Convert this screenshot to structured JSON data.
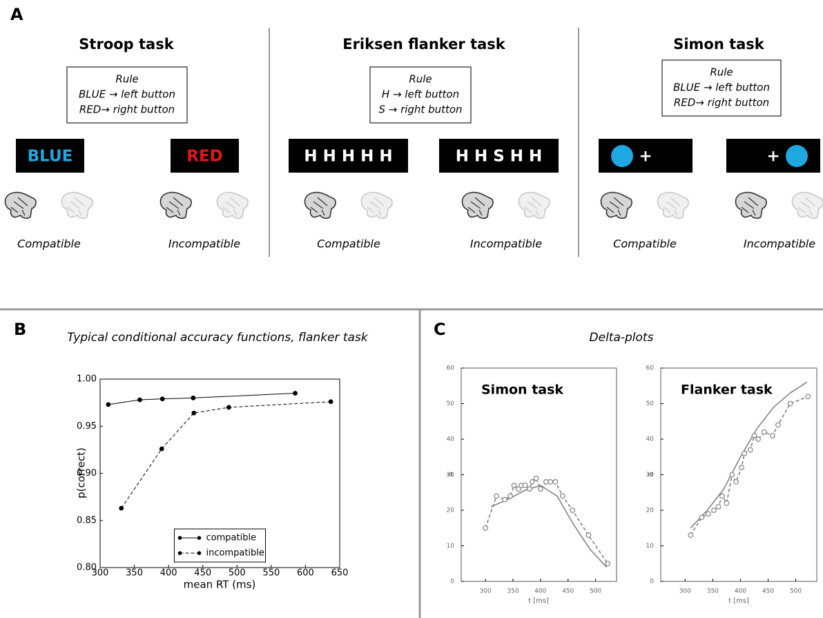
{
  "panels": {
    "a": "A",
    "b": "B",
    "c": "C"
  },
  "panel_a": {
    "tasks": [
      {
        "title": "Stroop task",
        "rule": [
          "Rule",
          "BLUE → left button",
          "RED→ right button"
        ],
        "stimuli": [
          {
            "text": "BLUE",
            "color": "#1ea7e1"
          },
          {
            "text": "RED",
            "color": "#e8141b"
          }
        ],
        "conditions": [
          "Compatible",
          "Incompatible"
        ]
      },
      {
        "title": "Eriksen flanker task",
        "rule": [
          "Rule",
          "H → left button",
          "S → right button"
        ],
        "stimuli": [
          {
            "text": "H H H H H",
            "color": "#ffffff"
          },
          {
            "text": "H H S H H",
            "color": "#ffffff"
          }
        ],
        "conditions": [
          "Compatible",
          "Incompatible"
        ]
      },
      {
        "title": "Simon task",
        "rule": [
          "Rule",
          "BLUE → left button",
          "RED→ right button"
        ],
        "stimuli": [
          {
            "text": "+",
            "color": "#ffffff",
            "circle": "left"
          },
          {
            "text": "+",
            "color": "#ffffff",
            "circle": "right"
          }
        ],
        "conditions": [
          "Compatible",
          "Incompatible"
        ]
      }
    ]
  },
  "panel_c_title": "Delta-plots",
  "chart_data": [
    {
      "type": "line",
      "title": "Typical conditional accuracy functions, flanker task",
      "xlabel": "mean RT (ms)",
      "ylabel": "p(correct)",
      "xlim": [
        300,
        650
      ],
      "ylim": [
        0.8,
        1.0
      ],
      "xticks": [
        300,
        350,
        400,
        450,
        500,
        550,
        600,
        650
      ],
      "yticks": [
        {
          "value": 0.8,
          "label": "0.80"
        },
        0.85,
        {
          "value": 0.9,
          "label": "0.90"
        },
        0.95,
        {
          "value": 1.0,
          "label": "1.00"
        }
      ],
      "legend": "lower center",
      "series": [
        {
          "name": "compatible",
          "color": "#000000",
          "dashed": false,
          "marker": "dot",
          "x": [
            312,
            358,
            391,
            436,
            585
          ],
          "values": [
            0.973,
            0.978,
            0.979,
            0.98,
            0.985
          ]
        },
        {
          "name": "incompatible",
          "color": "#000000",
          "dashed": true,
          "marker": "dot",
          "x": [
            331,
            390,
            437,
            488,
            637
          ],
          "values": [
            0.863,
            0.926,
            0.964,
            0.97,
            0.976
          ]
        }
      ]
    },
    {
      "type": "line",
      "annotation": "Simon task",
      "xlabel": "t [ms]",
      "ylabel": "Δ",
      "xlim": [
        256,
        538
      ],
      "ylim": [
        0,
        60
      ],
      "xticks": [
        300,
        350,
        400,
        450,
        500
      ],
      "yticks": [
        0,
        10,
        20,
        30,
        40,
        50,
        60
      ],
      "series": [
        {
          "color": "#808080",
          "dashed": false,
          "marker": "none",
          "x": [
            310,
            340,
            370,
            400,
            430,
            460,
            490,
            520
          ],
          "values": [
            21,
            23,
            25.5,
            27,
            24,
            16,
            9,
            4
          ]
        },
        {
          "color": "#808080",
          "dashed": true,
          "marker": "circle",
          "x": [
            300,
            320,
            335,
            345,
            352,
            360,
            365,
            372,
            380,
            385,
            392,
            400,
            410,
            418,
            427,
            440,
            458,
            487,
            522
          ],
          "values": [
            15,
            24,
            23,
            24,
            27,
            26,
            27,
            27,
            26,
            28,
            29,
            26,
            28,
            28,
            28,
            24,
            20,
            13,
            5
          ]
        }
      ]
    },
    {
      "type": "line",
      "annotation": "Flanker task",
      "xlabel": "t [ms]",
      "ylabel": "Δ",
      "xlim": [
        256,
        538
      ],
      "ylim": [
        0,
        60
      ],
      "xticks": [
        300,
        350,
        400,
        450,
        500
      ],
      "yticks": [
        0,
        10,
        20,
        30,
        40,
        50,
        60
      ],
      "series": [
        {
          "color": "#808080",
          "dashed": false,
          "marker": "none",
          "x": [
            310,
            340,
            370,
            400,
            430,
            460,
            490,
            520
          ],
          "values": [
            15,
            20,
            26,
            35,
            43,
            49,
            53,
            56
          ]
        },
        {
          "color": "#808080",
          "dashed": true,
          "marker": "circle",
          "x": [
            310,
            330,
            342,
            352,
            360,
            367,
            375,
            385,
            392,
            402,
            407,
            418,
            425,
            432,
            443,
            458,
            468,
            490,
            522
          ],
          "values": [
            13,
            18,
            19,
            20,
            21,
            24,
            22,
            30,
            28,
            32,
            36,
            37,
            41,
            40,
            42,
            41,
            44,
            50,
            52
          ]
        }
      ]
    }
  ]
}
